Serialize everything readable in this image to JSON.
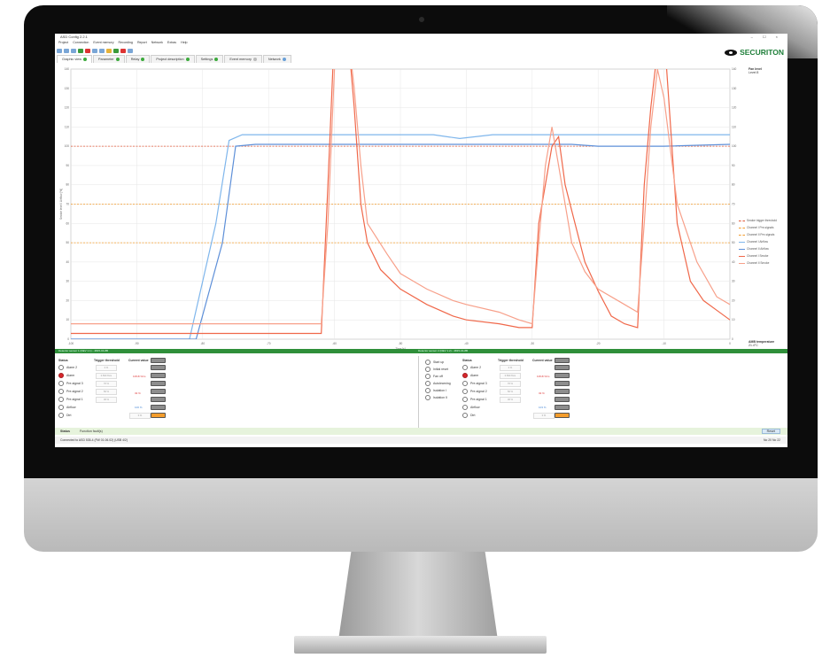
{
  "app": {
    "title": "ASD Config 2.2.1",
    "menu": [
      "Project",
      "Connection",
      "Event memory",
      "Recording",
      "Report",
      "Network",
      "Extras",
      "Help"
    ],
    "window_controls": "– ☐ ×"
  },
  "brand": {
    "logo": "SECURITON"
  },
  "tabs": [
    {
      "label": "Graphic view"
    },
    {
      "label": "Parameter"
    },
    {
      "label": "Relay"
    },
    {
      "label": "Project description"
    },
    {
      "label": "Settings"
    },
    {
      "label": "Event memory"
    },
    {
      "label": "Network"
    }
  ],
  "right_panel": {
    "fan_level_title": "Fan level",
    "fan_level_value": "Level 8",
    "temp_title": "AMB temperature",
    "temp_value": "21.4°C"
  },
  "colors": {
    "accent_green": "#2f8f3a",
    "alarm_red": "#d7262b",
    "airflow_blue": "#7fb6ec",
    "smoke_red": "#f0684a",
    "threshold_orange": "#f39c2c"
  },
  "chart_data": {
    "type": "line",
    "xlabel": "Time [s]",
    "ylabel": "Smoke level / Airflow [%]",
    "xlim": [
      -100,
      0
    ],
    "ylim": [
      0,
      140
    ],
    "x_ticks": [
      -100,
      -90,
      -80,
      -70,
      -60,
      -50,
      -40,
      -30,
      -20,
      -10,
      0
    ],
    "y_ticks": [
      0,
      10,
      20,
      30,
      40,
      50,
      60,
      70,
      80,
      90,
      100,
      110,
      120,
      130,
      140
    ],
    "x_tick_labels": [
      "-100",
      "-90",
      "-80",
      "-70",
      "-60",
      "-50",
      "-40",
      "-30",
      "-20",
      "-10",
      "0"
    ],
    "y_tick_labels": [
      "0",
      "10",
      "20",
      "30",
      "40",
      "50",
      "60",
      "70",
      "80",
      "90",
      "100",
      "110",
      "120",
      "130",
      "140"
    ],
    "legend_position": "right",
    "series": [
      {
        "name": "Smoke trigger threshold",
        "color": "#e05a3a",
        "dash": "2,1.5",
        "x": [
          -100,
          0
        ],
        "y": [
          100,
          100
        ]
      },
      {
        "name": "Channel I Pre-signals",
        "color": "#f39c2c",
        "dash": "2,1.5",
        "x": [
          -100,
          0
        ],
        "y": [
          70,
          70
        ]
      },
      {
        "name": "Channel II Pre-signals",
        "color": "#f39c2c",
        "dash": "2,1.5",
        "x": [
          -100,
          0
        ],
        "y": [
          50,
          50
        ]
      },
      {
        "name": "Channel I Airflow",
        "color": "#7fb6ec",
        "x": [
          -100,
          -87,
          -82,
          -78,
          -76,
          -74,
          -70,
          -60,
          -50,
          -45,
          -41,
          -36,
          -30,
          -25,
          -20,
          -10,
          0
        ],
        "y": [
          0,
          0,
          0,
          60,
          103,
          106,
          106,
          106,
          106,
          106,
          104,
          106,
          106,
          106,
          106,
          106,
          106
        ]
      },
      {
        "name": "Channel II Airflow",
        "color": "#5d8fd8",
        "x": [
          -100,
          -85,
          -81,
          -77,
          -75,
          -72,
          -70,
          -60,
          -50,
          -40,
          -30,
          -24,
          -20,
          -10,
          0
        ],
        "y": [
          0,
          0,
          0,
          50,
          100,
          101,
          101,
          101,
          101,
          101,
          101,
          101,
          100,
          100,
          101
        ]
      },
      {
        "name": "Channel I Smoke",
        "color": "#f0684a",
        "x": [
          -100,
          -90,
          -80,
          -70,
          -63,
          -62,
          -61,
          -60,
          -58,
          -57,
          -56,
          -55,
          -53,
          -50,
          -46,
          -42,
          -40,
          -35,
          -32,
          -30,
          -29,
          -27,
          -26,
          -25,
          -22,
          -20,
          -18,
          -16,
          -14,
          -13,
          -12,
          -11,
          -10,
          -8,
          -6,
          -4,
          -2,
          0
        ],
        "y": [
          3,
          3,
          3,
          3,
          3,
          3,
          80,
          160,
          160,
          120,
          70,
          50,
          36,
          26,
          18,
          12,
          10,
          8,
          6,
          6,
          60,
          100,
          105,
          80,
          40,
          25,
          12,
          8,
          6,
          80,
          120,
          150,
          160,
          60,
          30,
          20,
          15,
          10
        ]
      },
      {
        "name": "Channel II Smoke",
        "color": "#f7a08a",
        "x": [
          -100,
          -90,
          -80,
          -70,
          -65,
          -62,
          -61,
          -60,
          -58,
          -57,
          -56,
          -55,
          -52,
          -50,
          -46,
          -42,
          -40,
          -35,
          -32,
          -30,
          -29,
          -28,
          -27,
          -26,
          -24,
          -22,
          -20,
          -16,
          -14,
          -13,
          -12,
          -11,
          -10,
          -8,
          -5,
          -2,
          0
        ],
        "y": [
          8,
          8,
          8,
          8,
          8,
          8,
          60,
          140,
          160,
          130,
          90,
          60,
          44,
          34,
          26,
          20,
          18,
          14,
          10,
          8,
          50,
          90,
          110,
          90,
          50,
          35,
          26,
          18,
          14,
          60,
          110,
          140,
          125,
          70,
          40,
          22,
          18
        ]
      }
    ]
  },
  "panels": [
    {
      "sensor_label": "Detector sensor 1 (DEV 1.1) - 4815-04-8B",
      "commands": [],
      "status_header": "Status",
      "trigger_header": "Trigger threshold",
      "current_header": "Current value",
      "rows": [
        {
          "label": "Alarm 2",
          "state": "off",
          "trigger": "0 %"
        },
        {
          "label": "Alarm",
          "state": "alarm",
          "trigger": "0.500 %/m"
        },
        {
          "label": "Pre-signal 3",
          "state": "off",
          "trigger": "70 %"
        },
        {
          "label": "Pre-signal 2",
          "state": "off",
          "trigger": "50 %"
        },
        {
          "label": "Pre-signal 1",
          "state": "off",
          "trigger": "30 %"
        },
        {
          "label": "Airflow",
          "state": "off",
          "trigger": ""
        },
        {
          "label": "Dirt",
          "state": "off",
          "trigger": ""
        }
      ],
      "current_alarm": "0.818 %/m",
      "current_presignal": "32 %",
      "current_airflow": "106 %",
      "current_dirt": "0 %"
    },
    {
      "sensor_label": "Detector sensor 2 (DEV 1.2) - 4815-04-8B",
      "commands": [
        "Start up",
        "Initial reset",
        "Fan off",
        "Autolearning",
        "Isolation I",
        "Isolation II"
      ],
      "status_header": "Status",
      "trigger_header": "Trigger threshold",
      "current_header": "Current value",
      "rows": [
        {
          "label": "Alarm 2",
          "state": "off",
          "trigger": "0 %"
        },
        {
          "label": "Alarm",
          "state": "alarm",
          "trigger": "0.500 %/m"
        },
        {
          "label": "Pre-signal 3",
          "state": "off",
          "trigger": "70 %"
        },
        {
          "label": "Pre-signal 2",
          "state": "off",
          "trigger": "50 %"
        },
        {
          "label": "Pre-signal 1",
          "state": "off",
          "trigger": "30 %"
        },
        {
          "label": "Airflow",
          "state": "off",
          "trigger": ""
        },
        {
          "label": "Dirt",
          "state": "off",
          "trigger": ""
        }
      ],
      "current_alarm": "0.818 %/m",
      "current_presignal": "32 %",
      "current_airflow": "103 %",
      "current_dirt": "0 %"
    }
  ],
  "status_bar": {
    "tab1": "Status",
    "tab2": "Function fault(s)",
    "reset": "Reset"
  },
  "bottom_bar": {
    "connection": "Connected to ASD 535-4 (FW 01.06.02) (USB 4/2)",
    "right": "No 20   No 22"
  }
}
